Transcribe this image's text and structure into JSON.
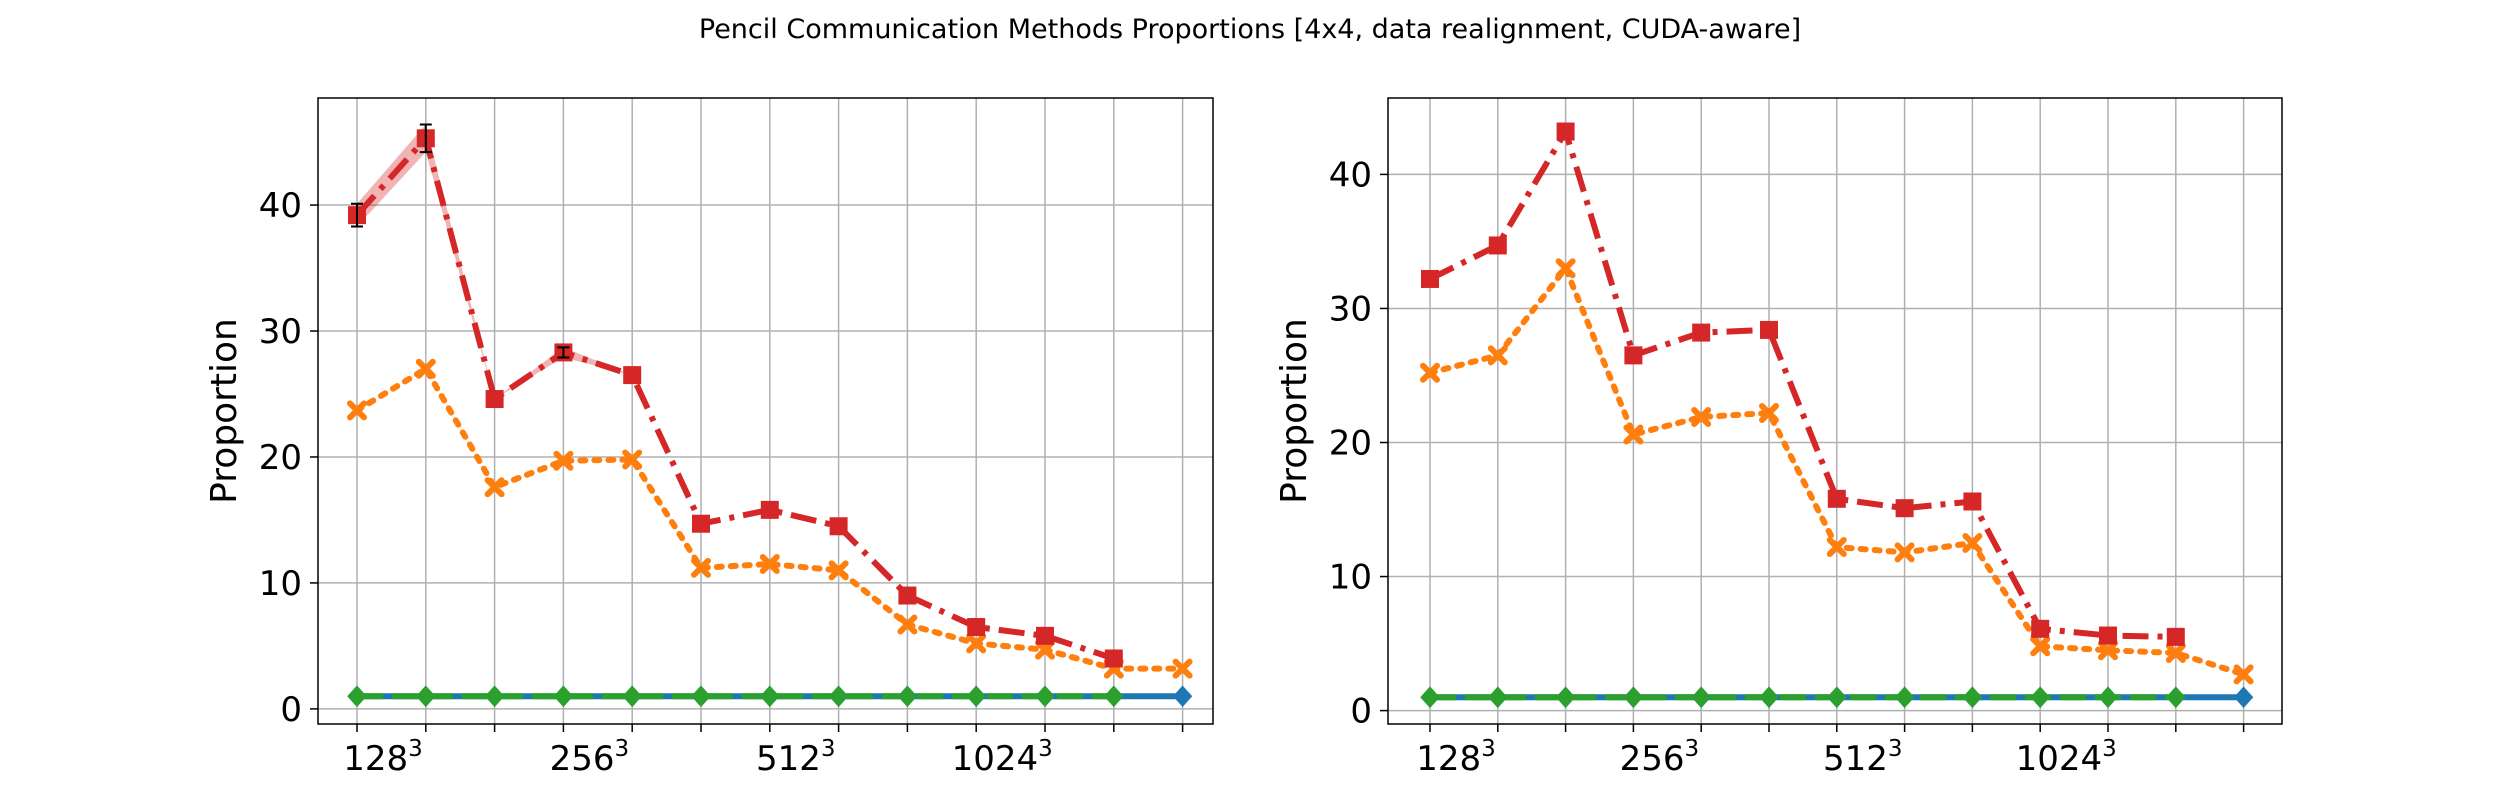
{
  "suptitle": "Pencil Communication Methods Proportions [4x4, data realignment, CUDA-aware]",
  "colors": {
    "blue": "#1f77b4",
    "orange": "#ff7f0e",
    "green": "#2ca02c",
    "red": "#d62728",
    "grid": "#b0b0b0"
  },
  "chart_data": [
    {
      "type": "line",
      "title": "",
      "xlabel": "",
      "ylabel": "Proportion",
      "grid": true,
      "ylim": [
        -1.2,
        48.5
      ],
      "yticks": [
        0,
        10,
        20,
        30,
        40
      ],
      "x_tick_labels": [
        {
          "index": 0,
          "base": "128",
          "exp": "3"
        },
        {
          "index": 3,
          "base": "256",
          "exp": "3"
        },
        {
          "index": 6,
          "base": "512",
          "exp": "3"
        },
        {
          "index": 9,
          "base": "1024",
          "exp": "3"
        }
      ],
      "n_positions": 13,
      "series": [
        {
          "color_key": "blue",
          "style": "solid",
          "marker": "diamond",
          "values": [
            1,
            1,
            1,
            1,
            1,
            1,
            1,
            1,
            1,
            1,
            1,
            1,
            1
          ]
        },
        {
          "color_key": "green",
          "style": "dashed",
          "marker": "diamond",
          "values": [
            1,
            1,
            1,
            1,
            1,
            1,
            1,
            1,
            1,
            1,
            1,
            1,
            null
          ]
        },
        {
          "color_key": "orange",
          "style": "dotted",
          "marker": "x",
          "values": [
            23.7,
            27.0,
            17.6,
            19.7,
            19.8,
            11.2,
            11.5,
            11.0,
            6.7,
            5.2,
            4.7,
            3.2,
            3.2
          ]
        },
        {
          "color_key": "red",
          "style": "dashdot",
          "marker": "square",
          "values": [
            39.2,
            45.3,
            24.6,
            28.3,
            26.5,
            14.7,
            15.8,
            14.5,
            9.0,
            6.5,
            5.8,
            4.0,
            null
          ],
          "errors": [
            0.9,
            1.1,
            0,
            0.4,
            0,
            0,
            0,
            0,
            0,
            0,
            0,
            0,
            null
          ]
        }
      ]
    },
    {
      "type": "line",
      "title": "",
      "xlabel": "",
      "ylabel": "Proportion",
      "grid": true,
      "ylim": [
        -1.0,
        45.7
      ],
      "yticks": [
        0,
        10,
        20,
        30,
        40
      ],
      "x_tick_labels": [
        {
          "index": 0,
          "base": "128",
          "exp": "3"
        },
        {
          "index": 3,
          "base": "256",
          "exp": "3"
        },
        {
          "index": 6,
          "base": "512",
          "exp": "3"
        },
        {
          "index": 9,
          "base": "1024",
          "exp": "3"
        }
      ],
      "n_positions": 13,
      "series": [
        {
          "color_key": "blue",
          "style": "solid",
          "marker": "diamond",
          "values": [
            1,
            1,
            1,
            1,
            1,
            1,
            1,
            1,
            1,
            1,
            1,
            1,
            1
          ]
        },
        {
          "color_key": "green",
          "style": "dashed",
          "marker": "diamond",
          "values": [
            1,
            1,
            1,
            1,
            1,
            1,
            1,
            1,
            1,
            1,
            1,
            1,
            null
          ]
        },
        {
          "color_key": "orange",
          "style": "dotted",
          "marker": "x",
          "values": [
            25.2,
            26.5,
            33.0,
            20.6,
            21.9,
            22.2,
            12.2,
            11.8,
            12.5,
            4.8,
            4.5,
            4.3,
            2.7
          ]
        },
        {
          "color_key": "red",
          "style": "dashdot",
          "marker": "square",
          "values": [
            32.2,
            34.7,
            43.2,
            26.5,
            28.2,
            28.4,
            15.8,
            15.1,
            15.6,
            6.1,
            5.6,
            5.5,
            null
          ],
          "errors": [
            0,
            0,
            0,
            0,
            0,
            0,
            0,
            0,
            0,
            0,
            0,
            0,
            null
          ]
        }
      ]
    }
  ]
}
